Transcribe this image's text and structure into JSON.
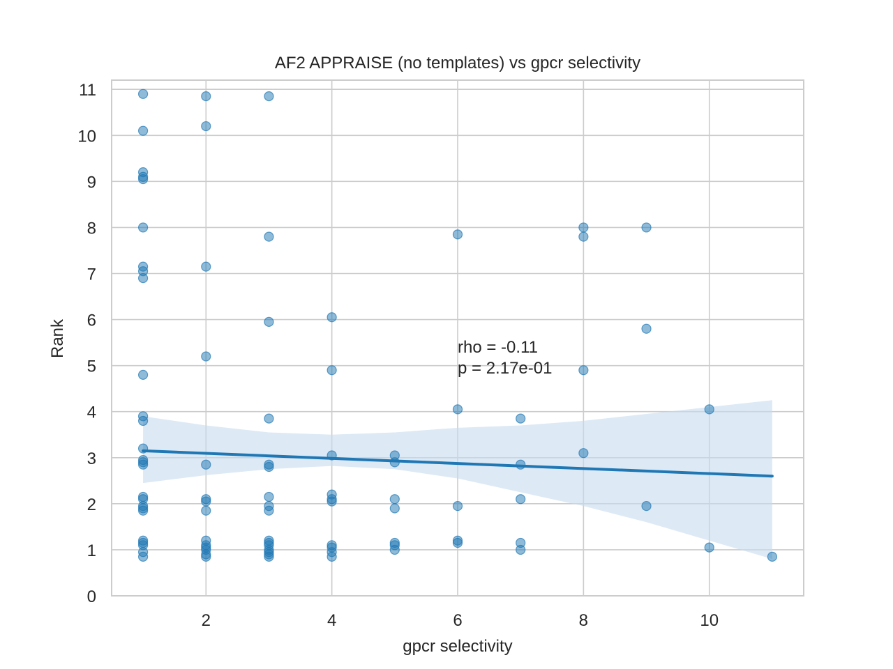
{
  "colors": {
    "point": "#1f77b4",
    "line": "#1f77b4",
    "band": "#c6dbef",
    "grid": "#cccccc",
    "frame": "#cccccc",
    "text": "#262626"
  },
  "chart_data": {
    "type": "scatter",
    "title": "AF2 APPRAISE (no templates) vs gpcr selectivity",
    "xlabel": "gpcr selectivity",
    "ylabel": "Rank",
    "xlim": [
      0.5,
      11.5
    ],
    "ylim": [
      0,
      11.2
    ],
    "x_ticks": [
      2,
      4,
      6,
      8,
      10
    ],
    "y_ticks": [
      0,
      1,
      2,
      3,
      4,
      5,
      6,
      7,
      8,
      9,
      10,
      11
    ],
    "grid": true,
    "annotation": [
      "rho = -0.11",
      "p = 2.17e-01"
    ],
    "annotation_position": {
      "x": 6,
      "y": 5.4
    },
    "points": [
      {
        "x": 1,
        "y": 10.9
      },
      {
        "x": 1,
        "y": 10.1
      },
      {
        "x": 1,
        "y": 9.2
      },
      {
        "x": 1,
        "y": 9.1
      },
      {
        "x": 1,
        "y": 9.05
      },
      {
        "x": 1,
        "y": 8.0
      },
      {
        "x": 1,
        "y": 7.15
      },
      {
        "x": 1,
        "y": 7.05
      },
      {
        "x": 1,
        "y": 6.9
      },
      {
        "x": 1,
        "y": 4.8
      },
      {
        "x": 1,
        "y": 3.9
      },
      {
        "x": 1,
        "y": 3.8
      },
      {
        "x": 1,
        "y": 3.2
      },
      {
        "x": 1,
        "y": 2.95
      },
      {
        "x": 1,
        "y": 2.9
      },
      {
        "x": 1,
        "y": 2.85
      },
      {
        "x": 1,
        "y": 2.15
      },
      {
        "x": 1,
        "y": 2.1
      },
      {
        "x": 1,
        "y": 1.95
      },
      {
        "x": 1,
        "y": 1.9
      },
      {
        "x": 1,
        "y": 1.85
      },
      {
        "x": 1,
        "y": 1.2
      },
      {
        "x": 1,
        "y": 1.15
      },
      {
        "x": 1,
        "y": 1.1
      },
      {
        "x": 1,
        "y": 0.95
      },
      {
        "x": 1,
        "y": 0.85
      },
      {
        "x": 2,
        "y": 10.85
      },
      {
        "x": 2,
        "y": 10.2
      },
      {
        "x": 2,
        "y": 7.15
      },
      {
        "x": 2,
        "y": 5.2
      },
      {
        "x": 2,
        "y": 2.85
      },
      {
        "x": 2,
        "y": 2.1
      },
      {
        "x": 2,
        "y": 2.05
      },
      {
        "x": 2,
        "y": 1.85
      },
      {
        "x": 2,
        "y": 1.2
      },
      {
        "x": 2,
        "y": 1.1
      },
      {
        "x": 2,
        "y": 1.05
      },
      {
        "x": 2,
        "y": 1.0
      },
      {
        "x": 2,
        "y": 0.9
      },
      {
        "x": 2,
        "y": 0.85
      },
      {
        "x": 3,
        "y": 10.85
      },
      {
        "x": 3,
        "y": 7.8
      },
      {
        "x": 3,
        "y": 5.95
      },
      {
        "x": 3,
        "y": 3.85
      },
      {
        "x": 3,
        "y": 2.85
      },
      {
        "x": 3,
        "y": 2.8
      },
      {
        "x": 3,
        "y": 2.15
      },
      {
        "x": 3,
        "y": 1.95
      },
      {
        "x": 3,
        "y": 1.85
      },
      {
        "x": 3,
        "y": 1.2
      },
      {
        "x": 3,
        "y": 1.15
      },
      {
        "x": 3,
        "y": 1.1
      },
      {
        "x": 3,
        "y": 1.0
      },
      {
        "x": 3,
        "y": 0.95
      },
      {
        "x": 3,
        "y": 0.9
      },
      {
        "x": 3,
        "y": 0.85
      },
      {
        "x": 4,
        "y": 6.05
      },
      {
        "x": 4,
        "y": 4.9
      },
      {
        "x": 4,
        "y": 3.05
      },
      {
        "x": 4,
        "y": 2.2
      },
      {
        "x": 4,
        "y": 2.1
      },
      {
        "x": 4,
        "y": 2.05
      },
      {
        "x": 4,
        "y": 1.1
      },
      {
        "x": 4,
        "y": 1.05
      },
      {
        "x": 4,
        "y": 0.95
      },
      {
        "x": 4,
        "y": 0.85
      },
      {
        "x": 5,
        "y": 3.05
      },
      {
        "x": 5,
        "y": 2.9
      },
      {
        "x": 5,
        "y": 2.1
      },
      {
        "x": 5,
        "y": 1.9
      },
      {
        "x": 5,
        "y": 1.15
      },
      {
        "x": 5,
        "y": 1.1
      },
      {
        "x": 5,
        "y": 1.0
      },
      {
        "x": 6,
        "y": 7.85
      },
      {
        "x": 6,
        "y": 4.05
      },
      {
        "x": 6,
        "y": 1.95
      },
      {
        "x": 6,
        "y": 1.2
      },
      {
        "x": 6,
        "y": 1.15
      },
      {
        "x": 7,
        "y": 3.85
      },
      {
        "x": 7,
        "y": 2.85
      },
      {
        "x": 7,
        "y": 2.1
      },
      {
        "x": 7,
        "y": 1.15
      },
      {
        "x": 7,
        "y": 1.0
      },
      {
        "x": 8,
        "y": 8.0
      },
      {
        "x": 8,
        "y": 7.8
      },
      {
        "x": 8,
        "y": 4.9
      },
      {
        "x": 8,
        "y": 3.1
      },
      {
        "x": 9,
        "y": 8.0
      },
      {
        "x": 9,
        "y": 5.8
      },
      {
        "x": 9,
        "y": 1.95
      },
      {
        "x": 10,
        "y": 4.05
      },
      {
        "x": 10,
        "y": 1.05
      },
      {
        "x": 11,
        "y": 0.85
      }
    ],
    "regression_line": {
      "x": [
        1,
        11
      ],
      "y": [
        3.15,
        2.6
      ]
    },
    "confidence_band": {
      "x": [
        1,
        2,
        3,
        4,
        5,
        6,
        7,
        8,
        9,
        10,
        11
      ],
      "lower": [
        2.45,
        2.62,
        2.75,
        2.82,
        2.75,
        2.55,
        2.25,
        1.95,
        1.6,
        1.2,
        0.8
      ],
      "upper": [
        3.9,
        3.7,
        3.55,
        3.5,
        3.55,
        3.65,
        3.7,
        3.8,
        3.95,
        4.1,
        4.25
      ]
    }
  }
}
